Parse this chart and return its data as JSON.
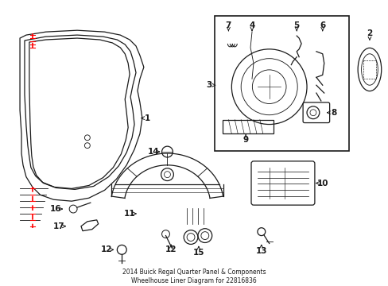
{
  "title": "2014 Buick Regal Quarter Panel & Components\nWheelhouse Liner Diagram for 22816836",
  "background_color": "#ffffff",
  "fig_width": 4.89,
  "fig_height": 3.6,
  "dpi": 100
}
